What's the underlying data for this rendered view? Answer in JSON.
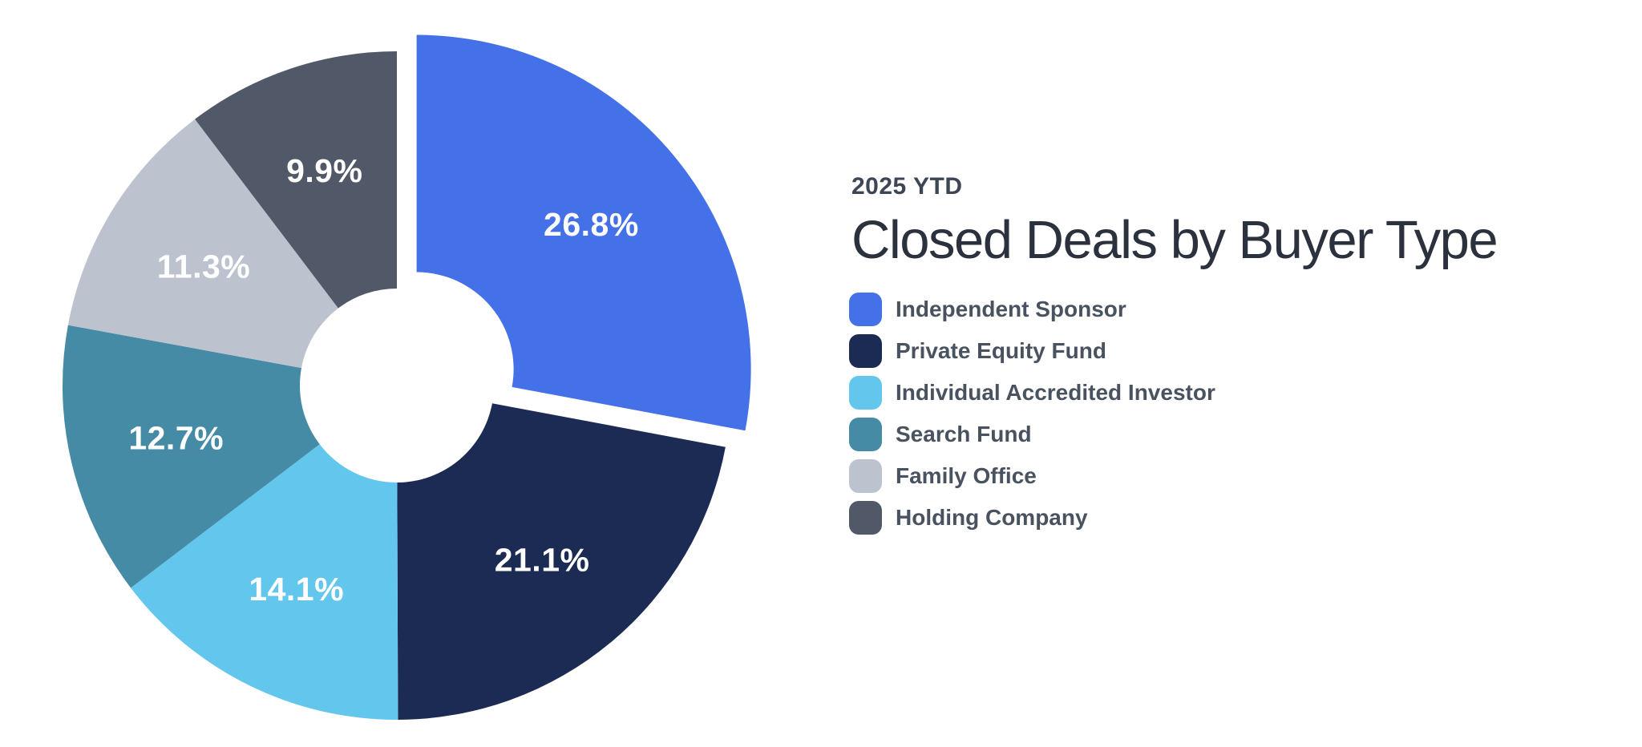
{
  "page": {
    "background": "#ffffff"
  },
  "chart_data": {
    "type": "pie",
    "subtype": "donut",
    "title": "Closed Deals by Buyer Type",
    "subtitle": "2025 YTD",
    "legend_position": "right",
    "labels_format": "percent_one_decimal",
    "slice_label_color": "#ffffff",
    "hole_ratio": 0.29,
    "start_angle_deg": 0,
    "direction": "clockwise",
    "exploded_label": "Independent Sponsor",
    "slices": [
      {
        "label": "Independent Sponsor",
        "value_pct": 26.8,
        "color": "#4571e8",
        "exploded": true
      },
      {
        "label": "Private Equity Fund",
        "value_pct": 21.1,
        "color": "#1c2b53",
        "exploded": false
      },
      {
        "label": "Individual Accredited Investor",
        "value_pct": 14.1,
        "color": "#63c6ed",
        "exploded": false
      },
      {
        "label": "Search Fund",
        "value_pct": 12.7,
        "color": "#458ba6",
        "exploded": false
      },
      {
        "label": "Family Office",
        "value_pct": 11.3,
        "color": "#bdc3ce",
        "exploded": false
      },
      {
        "label": "Holding Company",
        "value_pct": 9.9,
        "color": "#515868",
        "exploded": false
      }
    ]
  }
}
